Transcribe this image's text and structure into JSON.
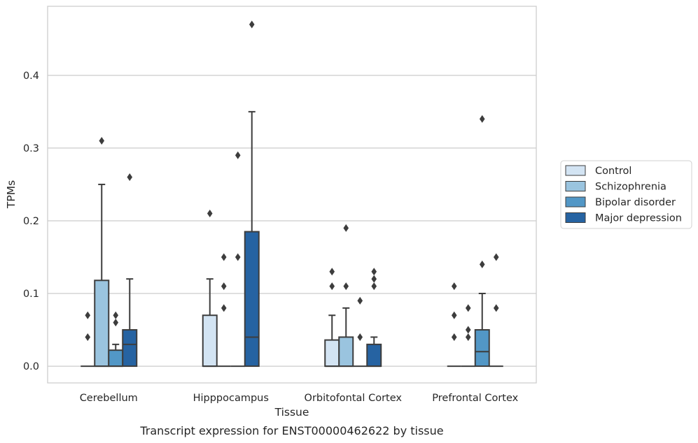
{
  "chart_data": {
    "type": "box",
    "xlabel": "Tissue",
    "ylabel": "TPMs",
    "caption": "Transcript expression for ENST00000462622 by tissue",
    "ylim": [
      -0.023,
      0.495
    ],
    "yticks": [
      "0.0",
      "0.1",
      "0.2",
      "0.3",
      "0.4"
    ],
    "grid": "horizontal",
    "legend_position": "right",
    "categories": [
      "Cerebellum",
      "Hipppocampus",
      "Orbitofontal Cortex",
      "Prefrontal Cortex"
    ],
    "series": [
      {
        "name": "Control",
        "color": "#d3e4f3",
        "boxes": [
          {
            "q1": 0,
            "median": 0,
            "q3": 0,
            "whisker_low": 0,
            "whisker_high": 0,
            "outliers": [
              0.04,
              0.07
            ]
          },
          {
            "q1": 0,
            "median": 0,
            "q3": 0.07,
            "whisker_low": 0,
            "whisker_high": 0.12,
            "outliers": [
              0.21
            ]
          },
          {
            "q1": 0,
            "median": 0,
            "q3": 0.036,
            "whisker_low": 0,
            "whisker_high": 0.07,
            "outliers": [
              0.11,
              0.13
            ]
          },
          {
            "q1": 0,
            "median": 0,
            "q3": 0,
            "whisker_low": 0,
            "whisker_high": 0,
            "outliers": [
              0.04,
              0.07,
              0.11
            ]
          }
        ]
      },
      {
        "name": "Schizophrenia",
        "color": "#9ac4df",
        "boxes": [
          {
            "q1": 0,
            "median": 0,
            "q3": 0.118,
            "whisker_low": 0,
            "whisker_high": 0.25,
            "outliers": [
              0.31
            ]
          },
          {
            "q1": 0,
            "median": 0,
            "q3": 0,
            "whisker_low": 0,
            "whisker_high": 0,
            "outliers": [
              0.08,
              0.11,
              0.15
            ]
          },
          {
            "q1": 0,
            "median": 0,
            "q3": 0.04,
            "whisker_low": 0,
            "whisker_high": 0.08,
            "outliers": [
              0.11,
              0.19
            ]
          },
          {
            "q1": 0,
            "median": 0,
            "q3": 0,
            "whisker_low": 0,
            "whisker_high": 0,
            "outliers": [
              0.04,
              0.05,
              0.08
            ]
          }
        ]
      },
      {
        "name": "Bipolar disorder",
        "color": "#5297c6",
        "boxes": [
          {
            "q1": 0,
            "median": 0,
            "q3": 0.022,
            "whisker_low": 0,
            "whisker_high": 0.03,
            "outliers": [
              0.06,
              0.07
            ]
          },
          {
            "q1": 0,
            "median": 0,
            "q3": 0,
            "whisker_low": 0,
            "whisker_high": 0,
            "outliers": [
              0.15,
              0.29
            ]
          },
          {
            "q1": 0,
            "median": 0,
            "q3": 0,
            "whisker_low": 0,
            "whisker_high": 0,
            "outliers": [
              0.04,
              0.09
            ]
          },
          {
            "q1": 0,
            "median": 0.02,
            "q3": 0.05,
            "whisker_low": 0,
            "whisker_high": 0.1,
            "outliers": [
              0.14,
              0.34
            ]
          }
        ]
      },
      {
        "name": "Major depression",
        "color": "#2663a2",
        "boxes": [
          {
            "q1": 0,
            "median": 0.03,
            "q3": 0.05,
            "whisker_low": 0,
            "whisker_high": 0.12,
            "outliers": [
              0.26
            ]
          },
          {
            "q1": 0,
            "median": 0.04,
            "q3": 0.185,
            "whisker_low": 0,
            "whisker_high": 0.35,
            "outliers": [
              0.47
            ]
          },
          {
            "q1": 0,
            "median": 0,
            "q3": 0.03,
            "whisker_low": 0,
            "whisker_high": 0.04,
            "outliers": [
              0.11,
              0.12,
              0.13
            ]
          },
          {
            "q1": 0,
            "median": 0,
            "q3": 0,
            "whisker_low": 0,
            "whisker_high": 0,
            "outliers": [
              0.08,
              0.15
            ]
          }
        ]
      }
    ]
  },
  "colors": {
    "frame": "#cccccc",
    "grid": "#cccccc",
    "line": "#3d3d3d"
  }
}
